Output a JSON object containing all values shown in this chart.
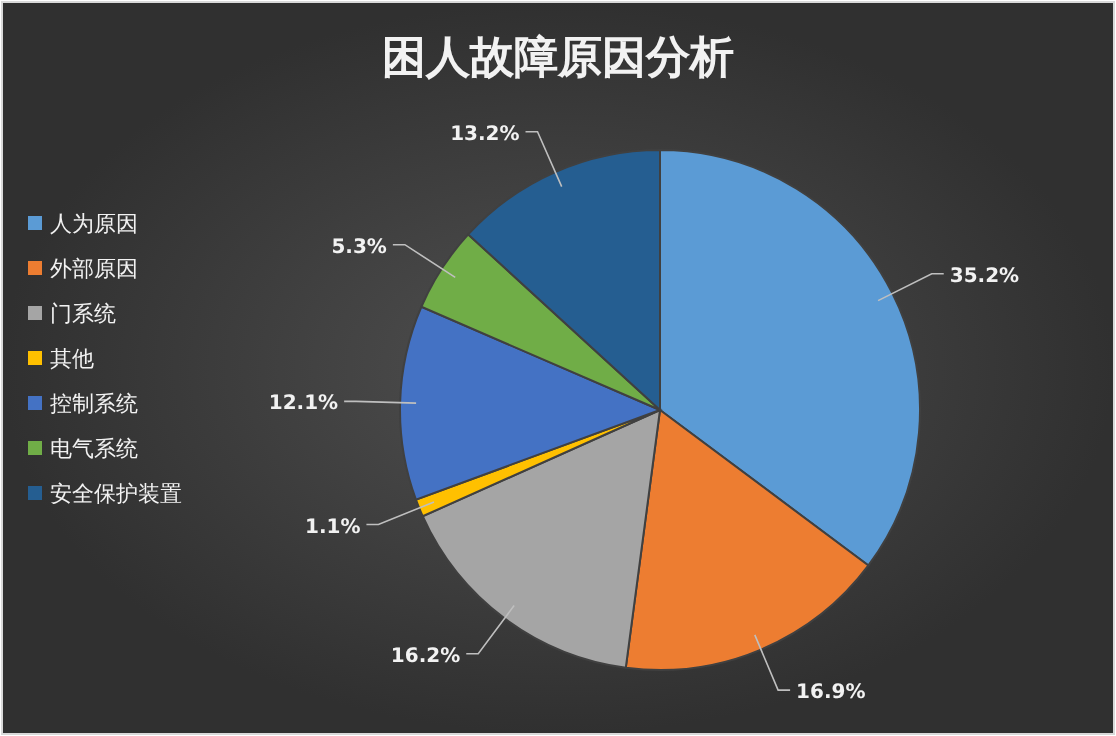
{
  "chart_data": {
    "type": "pie",
    "title": "困人故障原因分析",
    "categories": [
      "人为原因",
      "外部原因",
      "门系统",
      "其他",
      "控制系统",
      "电气系统",
      "安全保护装置"
    ],
    "values": [
      35.2,
      16.9,
      16.2,
      1.1,
      12.1,
      5.3,
      13.2
    ],
    "colors": [
      "#5b9bd5",
      "#ed7d31",
      "#a5a5a5",
      "#ffc000",
      "#4472c4",
      "#70ad47",
      "#255e91"
    ],
    "value_labels": [
      "35.2%",
      "16.9%",
      "16.2%",
      "1.1%",
      "12.1%",
      "5.3%",
      "13.2%"
    ],
    "legend": "left"
  }
}
